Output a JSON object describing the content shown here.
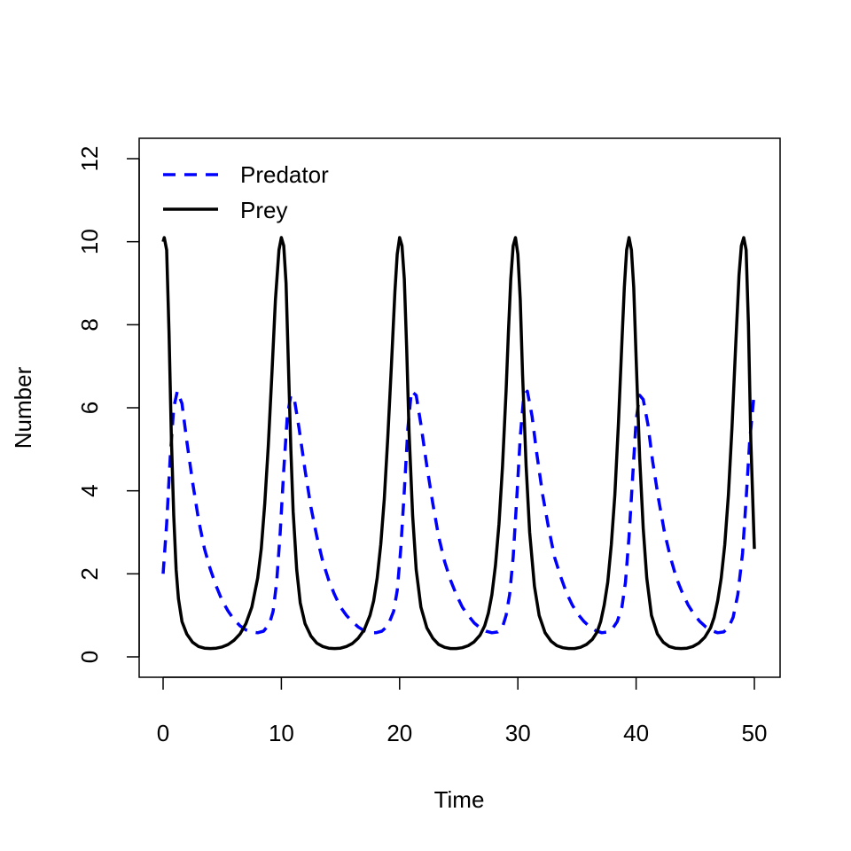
{
  "chart_data": {
    "type": "line",
    "title": "",
    "xlabel": "Time",
    "ylabel": "Number",
    "xlim": [
      0,
      50
    ],
    "ylim": [
      0,
      12
    ],
    "x_ticks": [
      0,
      10,
      20,
      30,
      40,
      50
    ],
    "y_ticks": [
      0,
      2,
      4,
      6,
      8,
      10,
      12
    ],
    "grid": false,
    "legend_position": "top-left",
    "series": [
      {
        "name": "Predator",
        "color": "#0000ff",
        "style": "dashed",
        "x": [
          0,
          0.3,
          0.6,
          0.9,
          1.2,
          1.6,
          2.0,
          2.5,
          3.0,
          3.5,
          4.0,
          4.5,
          5.0,
          5.5,
          6.0,
          6.5,
          7.0,
          7.5,
          8.0,
          8.5,
          9.0,
          9.3,
          9.6,
          9.9,
          10.2,
          10.5,
          10.8,
          11.1,
          11.5,
          12.0,
          12.5,
          13.0,
          13.5,
          14.0,
          14.5,
          15.0,
          15.5,
          16.0,
          16.5,
          17.0,
          17.5,
          18.0,
          18.5,
          19.0,
          19.5,
          19.8,
          20.1,
          20.4,
          20.7,
          21.0,
          21.4,
          21.8,
          22.3,
          22.8,
          23.3,
          23.8,
          24.3,
          24.8,
          25.3,
          25.8,
          26.3,
          26.8,
          27.3,
          27.8,
          28.3,
          28.7,
          29.0,
          29.3,
          29.6,
          29.9,
          30.2,
          30.5,
          30.8,
          31.2,
          31.6,
          32.1,
          32.6,
          33.1,
          33.6,
          34.1,
          34.6,
          35.1,
          35.6,
          36.1,
          36.6,
          37.1,
          37.6,
          38.0,
          38.4,
          38.8,
          39.1,
          39.4,
          39.7,
          40.0,
          40.3,
          40.6,
          41.0,
          41.4,
          41.9,
          42.4,
          42.9,
          43.4,
          43.9,
          44.4,
          44.9,
          45.4,
          45.9,
          46.4,
          46.9,
          47.4,
          47.8,
          48.2,
          48.6,
          49.0,
          49.3,
          49.6,
          50.0
        ],
        "y": [
          2.0,
          3.2,
          4.8,
          6.0,
          6.4,
          6.1,
          5.2,
          4.2,
          3.3,
          2.6,
          2.1,
          1.7,
          1.35,
          1.1,
          0.9,
          0.75,
          0.65,
          0.6,
          0.58,
          0.62,
          0.8,
          1.1,
          1.8,
          3.0,
          4.5,
          5.8,
          6.3,
          6.2,
          5.5,
          4.5,
          3.6,
          2.9,
          2.3,
          1.85,
          1.5,
          1.2,
          1.0,
          0.85,
          0.72,
          0.63,
          0.58,
          0.58,
          0.62,
          0.75,
          1.1,
          1.6,
          2.6,
          4.0,
          5.5,
          6.4,
          6.3,
          5.6,
          4.6,
          3.7,
          2.9,
          2.3,
          1.85,
          1.5,
          1.2,
          1.0,
          0.82,
          0.7,
          0.62,
          0.58,
          0.6,
          0.72,
          1.0,
          1.5,
          2.4,
          3.8,
          5.3,
          6.3,
          6.4,
          5.8,
          4.9,
          3.9,
          3.1,
          2.4,
          1.95,
          1.55,
          1.25,
          1.02,
          0.85,
          0.72,
          0.63,
          0.58,
          0.6,
          0.68,
          0.85,
          1.2,
          1.8,
          2.9,
          4.3,
          5.7,
          6.3,
          6.2,
          5.6,
          4.7,
          3.8,
          3.0,
          2.4,
          1.9,
          1.55,
          1.25,
          1.02,
          0.85,
          0.72,
          0.63,
          0.58,
          0.6,
          0.7,
          0.95,
          1.5,
          2.5,
          3.8,
          5.2,
          6.4
        ]
      },
      {
        "name": "Prey",
        "color": "#000000",
        "style": "solid",
        "x": [
          0,
          0.1,
          0.3,
          0.5,
          0.7,
          0.9,
          1.1,
          1.3,
          1.6,
          2.0,
          2.5,
          3.0,
          3.5,
          4.0,
          4.5,
          5.0,
          5.5,
          6.0,
          6.5,
          7.0,
          7.5,
          8.0,
          8.3,
          8.6,
          8.9,
          9.2,
          9.5,
          9.8,
          10.0,
          10.2,
          10.4,
          10.6,
          10.8,
          11.0,
          11.3,
          11.6,
          12.0,
          12.5,
          13.0,
          13.5,
          14.0,
          14.5,
          15.0,
          15.5,
          16.0,
          16.5,
          17.0,
          17.5,
          17.8,
          18.1,
          18.4,
          18.7,
          19.0,
          19.3,
          19.6,
          19.8,
          20.0,
          20.2,
          20.4,
          20.6,
          20.8,
          21.1,
          21.4,
          21.8,
          22.3,
          22.8,
          23.3,
          23.8,
          24.3,
          24.8,
          25.3,
          25.8,
          26.3,
          26.8,
          27.2,
          27.5,
          27.8,
          28.1,
          28.4,
          28.7,
          29.0,
          29.2,
          29.4,
          29.6,
          29.8,
          30.0,
          30.2,
          30.4,
          30.7,
          31.0,
          31.4,
          31.8,
          32.3,
          32.8,
          33.3,
          33.8,
          34.3,
          34.8,
          35.3,
          35.8,
          36.3,
          36.7,
          37.0,
          37.3,
          37.6,
          37.9,
          38.2,
          38.5,
          38.8,
          39.0,
          39.2,
          39.4,
          39.6,
          39.8,
          40.0,
          40.3,
          40.6,
          40.9,
          41.3,
          41.8,
          42.3,
          42.8,
          43.3,
          43.8,
          44.3,
          44.8,
          45.3,
          45.8,
          46.3,
          46.6,
          46.9,
          47.2,
          47.5,
          47.8,
          48.1,
          48.4,
          48.7,
          48.9,
          49.1,
          49.3,
          49.5,
          49.7,
          50.0
        ],
        "y": [
          10.0,
          10.1,
          9.8,
          7.8,
          5.3,
          3.4,
          2.1,
          1.4,
          0.85,
          0.55,
          0.35,
          0.25,
          0.21,
          0.2,
          0.21,
          0.24,
          0.3,
          0.4,
          0.55,
          0.8,
          1.2,
          1.9,
          2.6,
          3.7,
          5.1,
          6.8,
          8.6,
          9.8,
          10.1,
          9.9,
          9.0,
          7.0,
          5.0,
          3.5,
          2.1,
          1.3,
          0.8,
          0.5,
          0.33,
          0.25,
          0.21,
          0.2,
          0.21,
          0.25,
          0.32,
          0.45,
          0.65,
          1.0,
          1.35,
          1.9,
          2.7,
          3.8,
          5.3,
          7.0,
          8.8,
          9.7,
          10.1,
          9.9,
          9.1,
          7.4,
          5.4,
          3.4,
          2.1,
          1.2,
          0.7,
          0.45,
          0.3,
          0.23,
          0.2,
          0.2,
          0.22,
          0.27,
          0.36,
          0.52,
          0.75,
          1.05,
          1.5,
          2.2,
          3.2,
          4.6,
          6.4,
          7.8,
          9.1,
          9.9,
          10.1,
          9.7,
          8.6,
          6.8,
          4.6,
          3.0,
          1.7,
          1.0,
          0.58,
          0.38,
          0.27,
          0.22,
          0.2,
          0.2,
          0.23,
          0.3,
          0.42,
          0.6,
          0.85,
          1.25,
          1.8,
          2.7,
          3.9,
          5.6,
          7.6,
          8.9,
          9.8,
          10.1,
          9.8,
          8.9,
          7.2,
          4.8,
          3.1,
          1.9,
          1.0,
          0.55,
          0.35,
          0.25,
          0.21,
          0.2,
          0.21,
          0.25,
          0.33,
          0.47,
          0.7,
          0.95,
          1.35,
          1.9,
          2.7,
          3.9,
          5.5,
          7.4,
          9.2,
          9.9,
          10.1,
          9.8,
          8.0,
          5.2,
          2.6
        ]
      }
    ]
  }
}
